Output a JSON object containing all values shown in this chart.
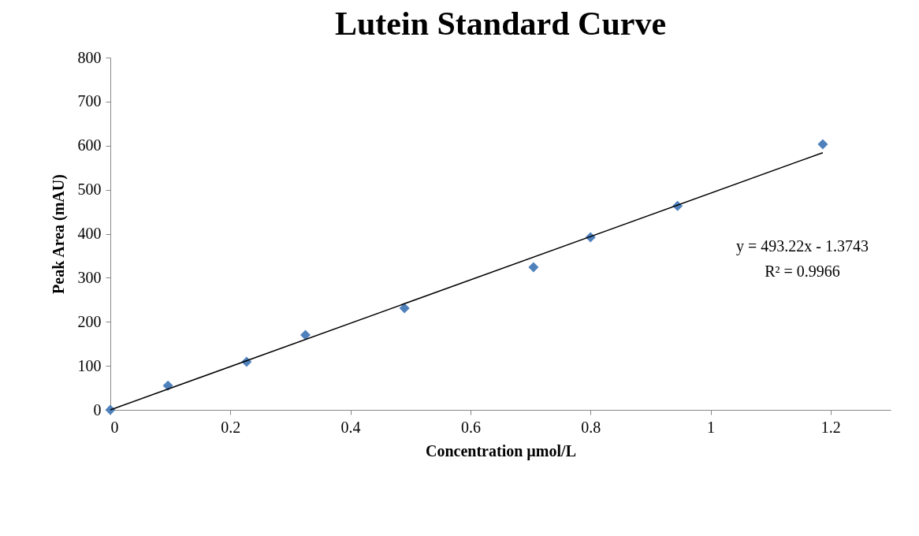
{
  "chart_data": {
    "type": "scatter",
    "title": "Lutein Standard Curve",
    "xlabel": "Concentration µmol/L",
    "ylabel": "Peak Area (mAU)",
    "xlim": [
      0,
      1.3
    ],
    "xticks": [
      0,
      0.2,
      0.4,
      0.6,
      0.8,
      1,
      1.2
    ],
    "ylim": [
      0,
      800
    ],
    "yticks": [
      0,
      100,
      200,
      300,
      400,
      500,
      600,
      700,
      800
    ],
    "grid": false,
    "series": [
      {
        "marker": "diamond",
        "color": "#4f81bd",
        "x": [
          0,
          0.096,
          0.227,
          0.325,
          0.49,
          0.705,
          0.8,
          0.945,
          1.187
        ],
        "values": [
          0,
          55,
          109,
          170,
          231,
          324,
          392,
          463,
          603
        ]
      },
      {
        "type": "line",
        "color": "#000000",
        "x": [
          0,
          1.187
        ],
        "values": [
          0,
          584
        ]
      }
    ],
    "annotations": [
      "y = 493.22x - 1.3743",
      "R² = 0.9966"
    ]
  }
}
